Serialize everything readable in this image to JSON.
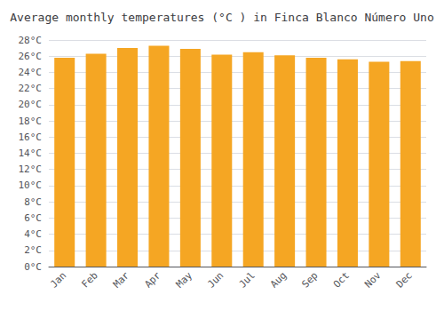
{
  "chart_data": {
    "type": "bar",
    "title": "Average monthly temperatures (°C ) in Finca Blanco Número Uno",
    "categories": [
      "Jan",
      "Feb",
      "Mar",
      "Apr",
      "May",
      "Jun",
      "Jul",
      "Aug",
      "Sep",
      "Oct",
      "Nov",
      "Dec"
    ],
    "values": [
      25.8,
      26.3,
      27.0,
      27.3,
      26.9,
      26.2,
      26.5,
      26.1,
      25.8,
      25.6,
      25.3,
      25.4
    ],
    "color": "#F5A623",
    "ylim": [
      0,
      28
    ],
    "yticks": [
      {
        "value": 0,
        "label": "0°C"
      },
      {
        "value": 2,
        "label": "2°C"
      },
      {
        "value": 4,
        "label": "4°C"
      },
      {
        "value": 6,
        "label": "6°C"
      },
      {
        "value": 8,
        "label": "8°C"
      },
      {
        "value": 10,
        "label": "10°C"
      },
      {
        "value": 12,
        "label": "12°C"
      },
      {
        "value": 14,
        "label": "14°C"
      },
      {
        "value": 16,
        "label": "16°C"
      },
      {
        "value": 18,
        "label": "18°C"
      },
      {
        "value": 20,
        "label": "20°C"
      },
      {
        "value": 22,
        "label": "22°C"
      },
      {
        "value": 24,
        "label": "24°C"
      },
      {
        "value": 26,
        "label": "26°C"
      },
      {
        "value": 28,
        "label": "28°C"
      }
    ],
    "grid": true
  }
}
